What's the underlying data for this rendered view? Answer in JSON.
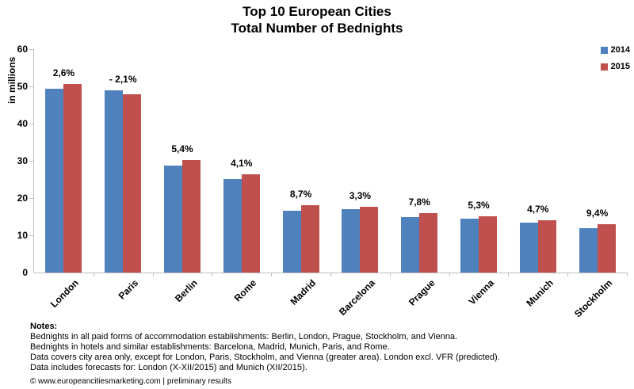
{
  "title": {
    "line1": "Top 10 European Cities",
    "line2": "Total Number of Bednights"
  },
  "legend": [
    {
      "label": "2014",
      "color": "#4F81BD"
    },
    {
      "label": "2015",
      "color": "#C0504D"
    }
  ],
  "y_axis": {
    "label": "in millions",
    "ticks": [
      0,
      10,
      20,
      30,
      40,
      50,
      60
    ]
  },
  "chart_data": {
    "type": "bar",
    "title": "Top 10 European Cities - Total Number of Bednights",
    "xlabel": "",
    "ylabel": "in millions",
    "ylim": [
      0,
      60
    ],
    "grid": false,
    "legend_position": "top-right",
    "categories": [
      "London",
      "Paris",
      "Berlin",
      "Rome",
      "Madrid",
      "Barcelona",
      "Prague",
      "Vienna",
      "Munich",
      "Stockholm"
    ],
    "series": [
      {
        "name": "2014",
        "color": "#4F81BD",
        "values": [
          49.4,
          48.9,
          28.7,
          25.2,
          16.6,
          17.1,
          14.8,
          14.4,
          13.5,
          11.9
        ]
      },
      {
        "name": "2015",
        "color": "#C0504D",
        "values": [
          50.7,
          47.9,
          30.2,
          26.3,
          18.1,
          17.7,
          16.0,
          15.2,
          14.1,
          13.0
        ]
      }
    ],
    "change_labels": [
      "2,6%",
      "- 2,1%",
      "5,4%",
      "4,1%",
      "8,7%",
      "3,3%",
      "7,8%",
      "5,3%",
      "4,7%",
      "9,4%"
    ]
  },
  "notes": {
    "heading": "Notes:",
    "lines": [
      "Bednights in all paid forms of accommodation establishments: Berlin, London, Prague, Stockholm, and Vienna.",
      "Bednights in hotels and similar establishments: Barcelona, Madrid, Munich, Paris, and Rome.",
      "Data covers city area only, except for London, Paris, Stockholm, and Vienna (greater area). London excl. VFR (predicted).",
      "Data includes forecasts for: London (X-XII/2015) and Munich (XII/2015)."
    ],
    "copyright": "© www.europeancitiesmarketing.com | preliminary results"
  }
}
